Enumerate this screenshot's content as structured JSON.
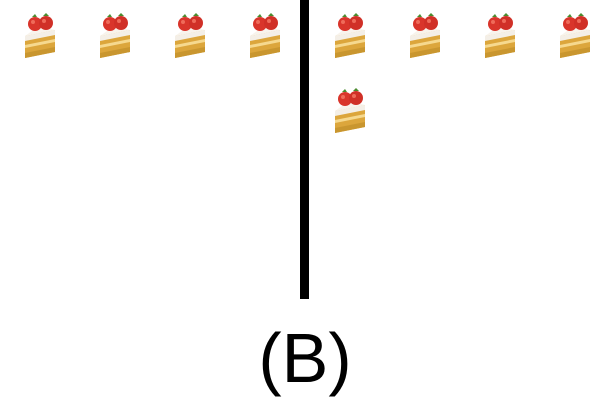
{
  "caption": "(B)",
  "icon": "strawberry-shortcake-icon",
  "groups": [
    {
      "name": "left",
      "count": 4
    },
    {
      "name": "right",
      "count": 5
    }
  ],
  "colors": {
    "sponge": "#e3b34a",
    "cream": "#f6f1ea",
    "strawberry": "#d9352b",
    "divider": "#000000"
  }
}
